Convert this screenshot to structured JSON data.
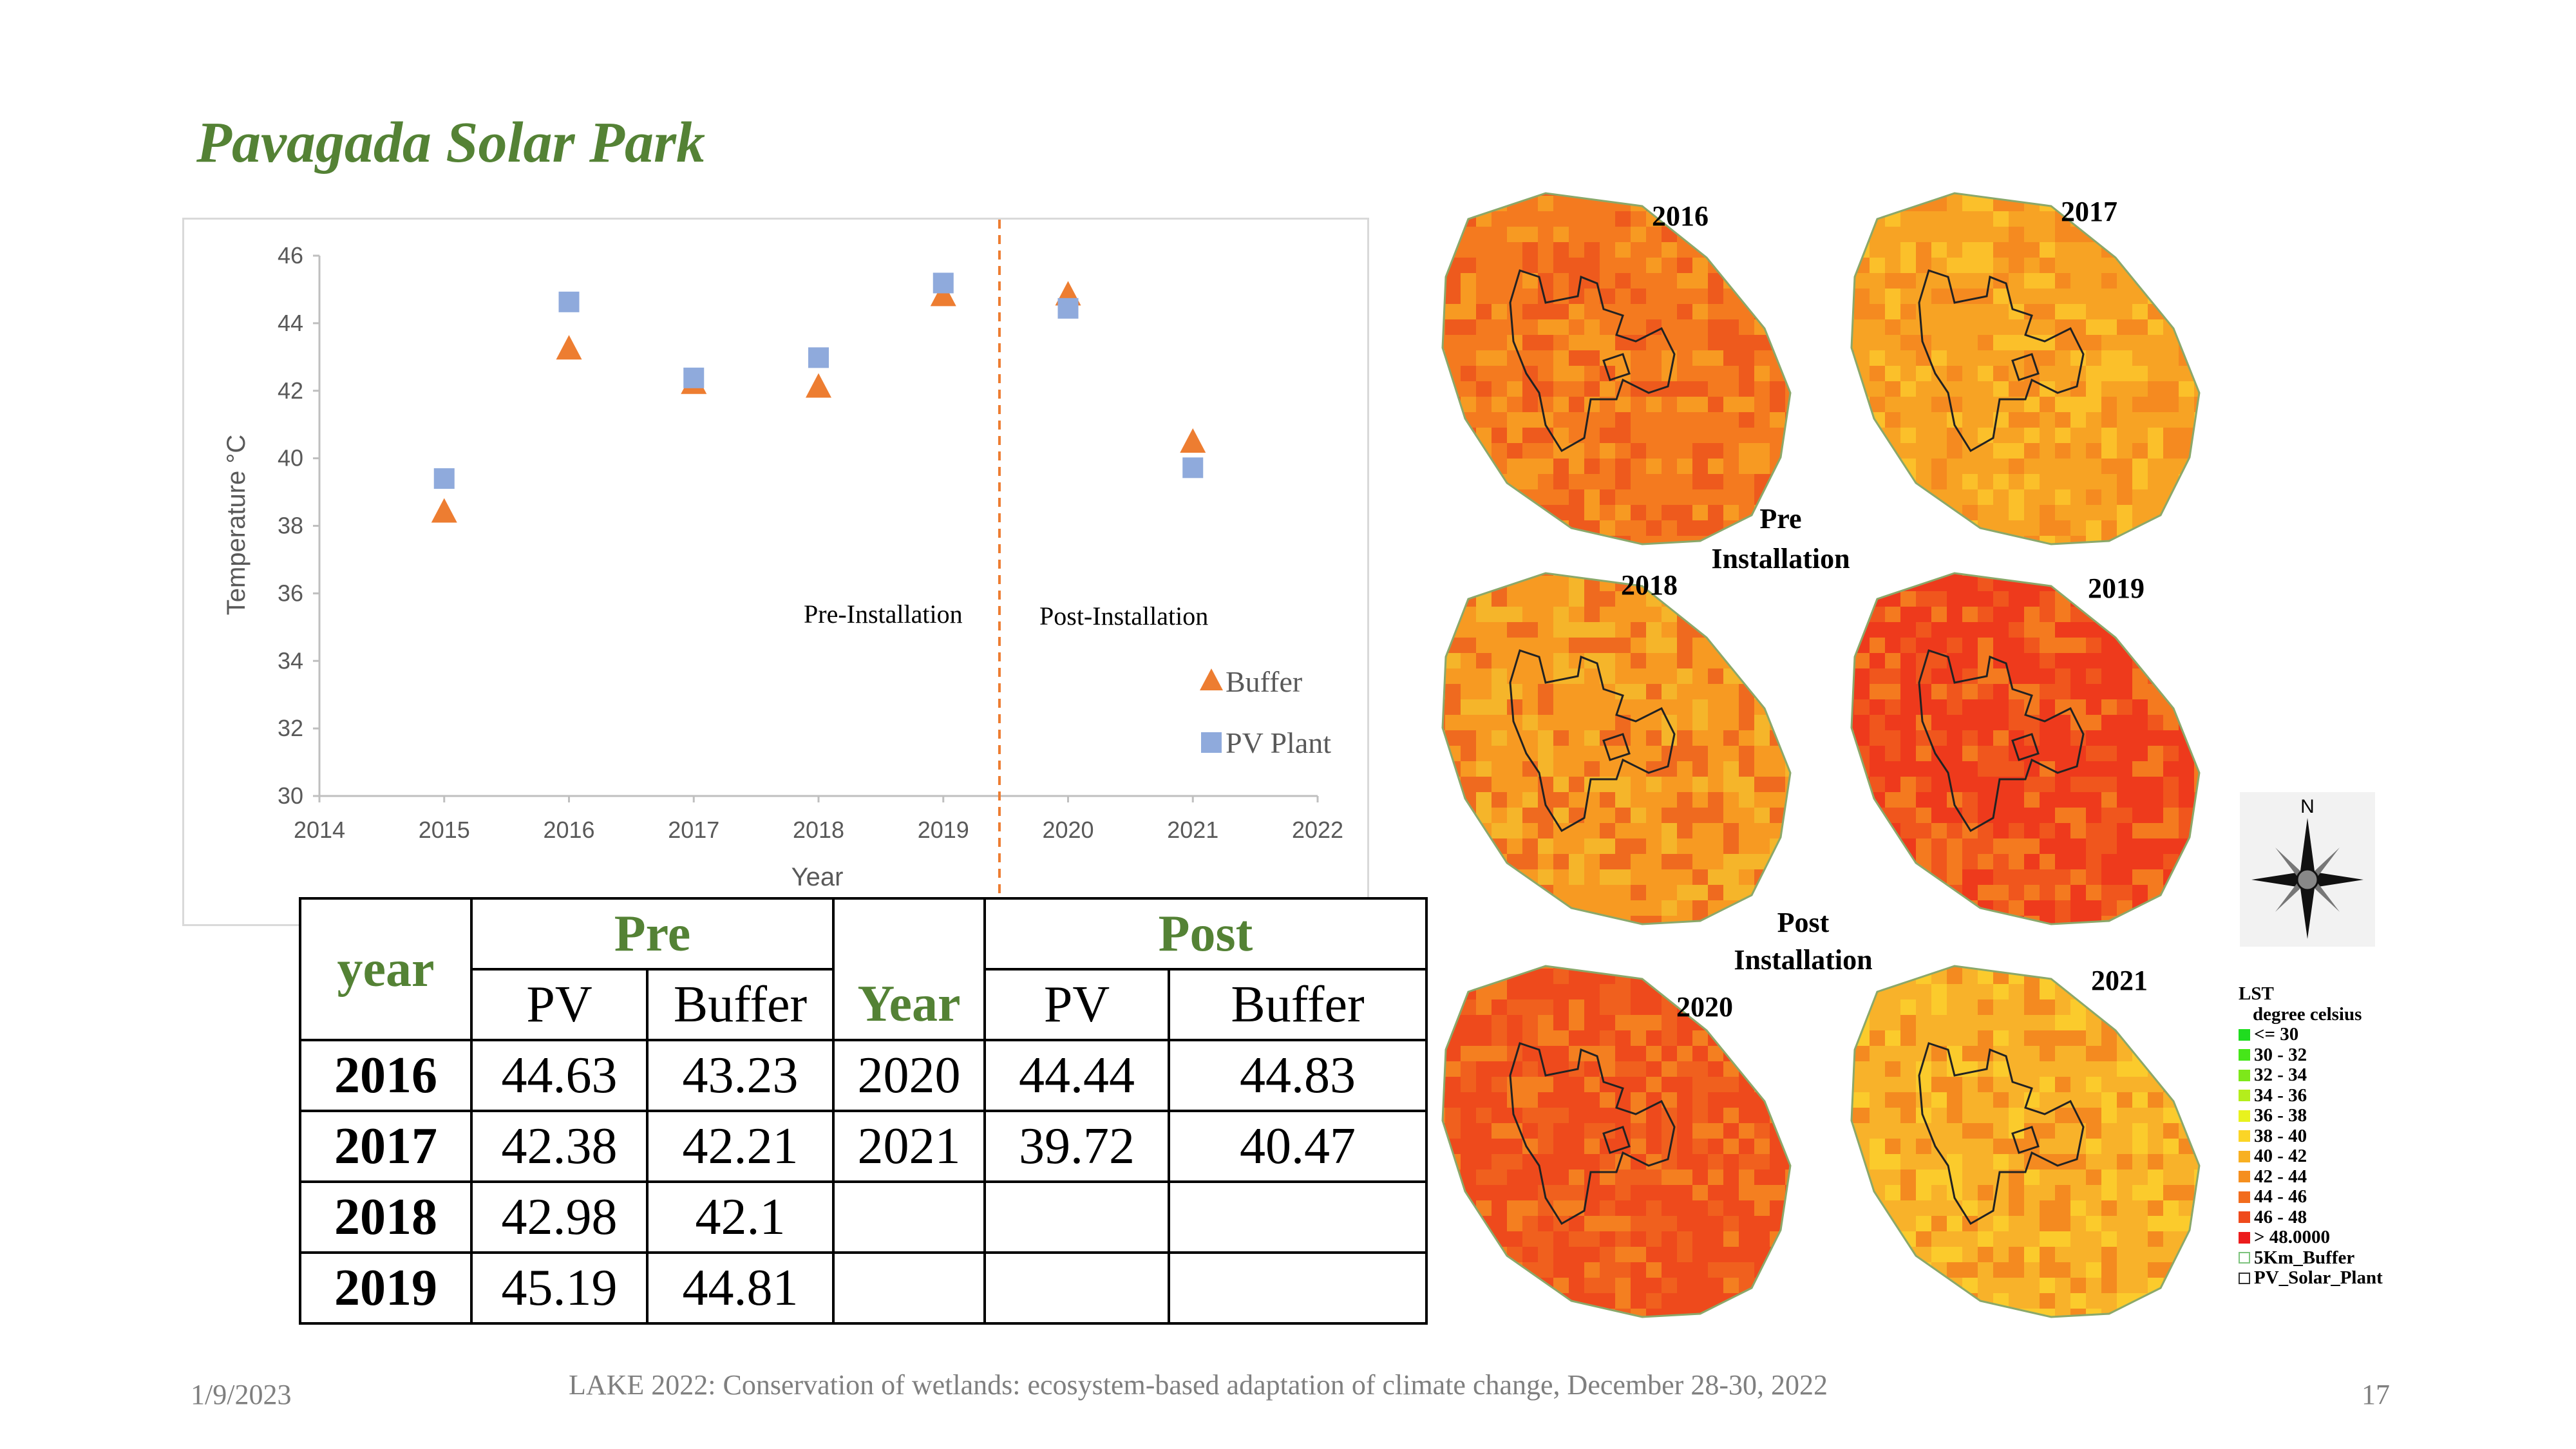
{
  "slide": {
    "title": "Pavagada Solar Park",
    "footer_date": "1/9/2023",
    "footer_text": "LAKE 2022: Conservation of wetlands: ecosystem-based adaptation of climate change, December 28-30, 2022",
    "page_number": "17"
  },
  "chart_data": {
    "type": "scatter",
    "x_range": [
      2014,
      2022
    ],
    "y_range": [
      30,
      46
    ],
    "x_ticks": [
      "2014",
      "2015",
      "2016",
      "2017",
      "2018",
      "2019",
      "2020",
      "2021",
      "2022"
    ],
    "y_ticks": [
      "30",
      "32",
      "34",
      "36",
      "38",
      "40",
      "42",
      "44",
      "46"
    ],
    "xlabel": "Year",
    "ylabel": "Temperature °C",
    "legend_position": "right",
    "divider_x": 2019.45,
    "annotations": {
      "pre": "Pre-Installation",
      "post": "Post-Installation"
    },
    "series": [
      {
        "name": "Buffer",
        "marker": "triangle",
        "color": "#ed7d31",
        "x": [
          2015,
          2016,
          2017,
          2018,
          2019,
          2020,
          2021
        ],
        "y": [
          38.4,
          43.23,
          42.21,
          42.1,
          44.81,
          44.83,
          40.47
        ]
      },
      {
        "name": "PV Plant",
        "marker": "square",
        "color": "#8faadc",
        "x": [
          2015,
          2016,
          2017,
          2018,
          2019,
          2020,
          2021
        ],
        "y": [
          39.4,
          44.63,
          42.38,
          42.98,
          45.19,
          44.44,
          39.72
        ]
      }
    ]
  },
  "table": {
    "year_header": "year",
    "pre_header": "Pre",
    "post_header": "Post",
    "year2_header": "Year",
    "pv_header": "PV",
    "buffer_header": "Buffer",
    "rows": [
      {
        "year": "2016",
        "pv": "44.63",
        "buffer": "43.23",
        "year2": "2020",
        "pv2": "44.44",
        "buffer2": "44.83"
      },
      {
        "year": "2017",
        "pv": "42.38",
        "buffer": "42.21",
        "year2": "2021",
        "pv2": "39.72",
        "buffer2": "40.47"
      },
      {
        "year": "2018",
        "pv": "42.98",
        "buffer": "42.1",
        "year2": "",
        "pv2": "",
        "buffer2": ""
      },
      {
        "year": "2019",
        "pv": "45.19",
        "buffer": "44.81",
        "year2": "",
        "pv2": "",
        "buffer2": ""
      }
    ]
  },
  "maps": {
    "labels": [
      "2016",
      "2017",
      "2018",
      "2019",
      "2020",
      "2021"
    ],
    "pre_label": "Pre Installation",
    "post_label": "Post Installation",
    "colors": {
      "2016": [
        "#f47a1f",
        "#ee5a1d",
        "#f79a22"
      ],
      "2017": [
        "#f7a324",
        "#f58a20",
        "#fbc02a"
      ],
      "2018": [
        "#f79a22",
        "#f5b52a",
        "#ef6a1f"
      ],
      "2019": [
        "#ee3a1c",
        "#f0561d",
        "#f47a1f"
      ],
      "2020": [
        "#ee4a1c",
        "#f0601e",
        "#f47f20"
      ],
      "2021": [
        "#f8b22a",
        "#fbcb2c",
        "#f48a20"
      ]
    }
  },
  "north_arrow": {
    "letter": "N"
  },
  "legend": {
    "title": "LST",
    "subtitle": "degree celsius",
    "items": [
      {
        "label": "<= 30",
        "color": "#1fdc1f"
      },
      {
        "label": "30 - 32",
        "color": "#46e619"
      },
      {
        "label": "32 - 34",
        "color": "#7de81a"
      },
      {
        "label": "34 - 36",
        "color": "#b4ee1c"
      },
      {
        "label": "36 - 38",
        "color": "#e8f21e"
      },
      {
        "label": "38 - 40",
        "color": "#fbd526"
      },
      {
        "label": "40 - 42",
        "color": "#f8b022"
      },
      {
        "label": "42 - 44",
        "color": "#f58f1f"
      },
      {
        "label": "44 - 46",
        "color": "#f26c1d"
      },
      {
        "label": "46 - 48",
        "color": "#ef4a1c"
      },
      {
        "label": "> 48.0000",
        "color": "#ec1c1c"
      }
    ],
    "buffer_label": "5Km_Buffer",
    "plant_label": "PV_Solar_Plant"
  }
}
